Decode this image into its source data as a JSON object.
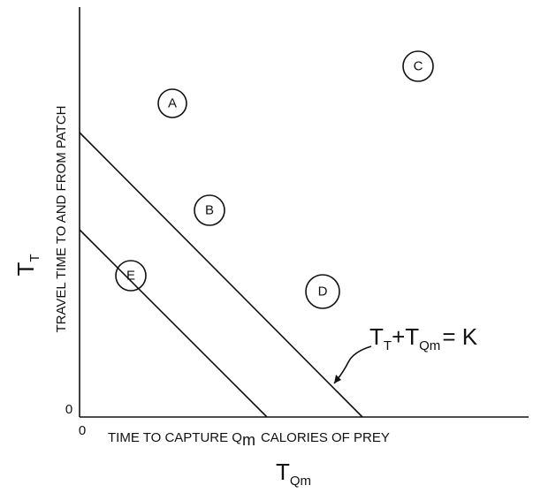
{
  "y_axis": {
    "label": "TRAVEL TIME TO AND FROM PATCH",
    "symbol": "T",
    "symbol_subscript": "T",
    "origin": "0"
  },
  "x_axis": {
    "label_before": "TIME TO CAPTURE Q",
    "label_subscript": "m",
    "label_after": "CALORIES OF PREY",
    "symbol": "T",
    "symbol_subscript": "Qm",
    "origin": "0"
  },
  "regions": [
    {
      "label": "A"
    },
    {
      "label": "B"
    },
    {
      "label": "C"
    },
    {
      "label": "D"
    },
    {
      "label": "E"
    }
  ],
  "equation": {
    "term1": "T",
    "term1_subscript": "T",
    "operator": "+",
    "term2": "T",
    "term2_subscript": "Qm",
    "rhs": "= K"
  }
}
